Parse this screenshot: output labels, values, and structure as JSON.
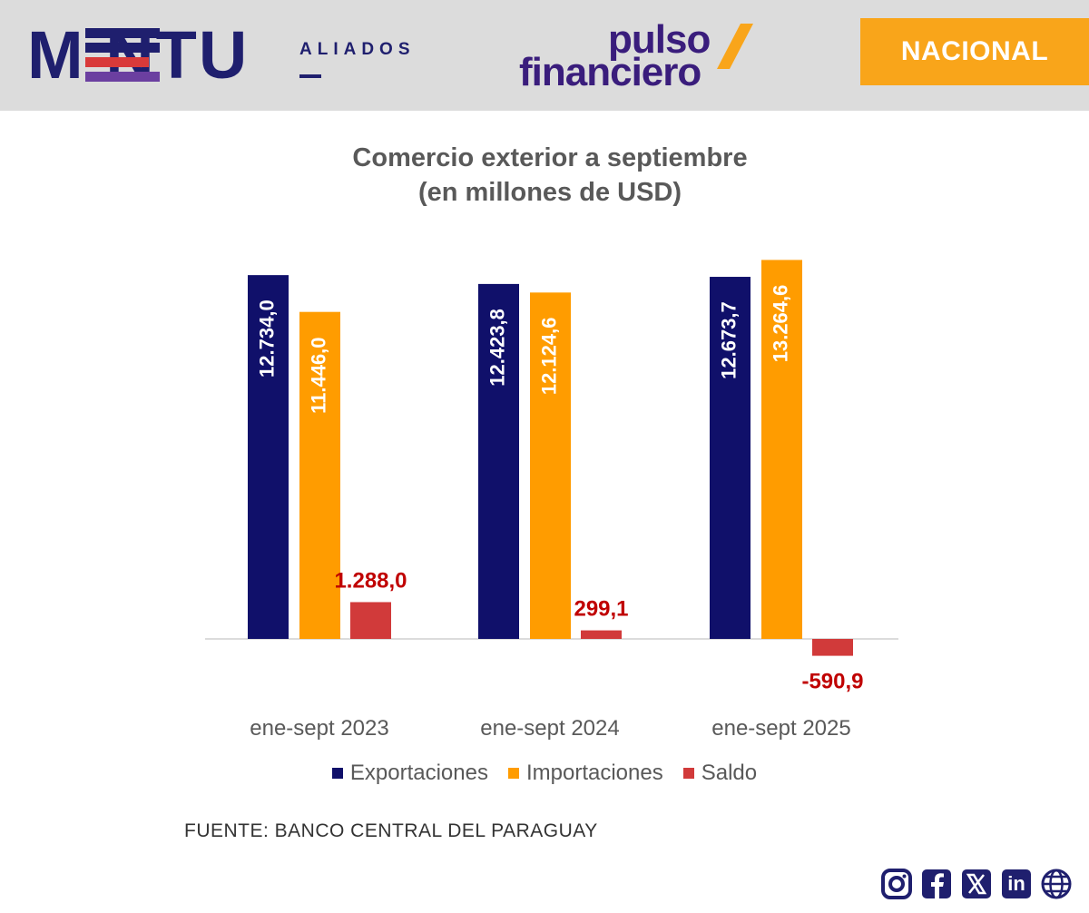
{
  "header": {
    "brand_mentu": "M NTU",
    "brand_aliados": "ALIADOS",
    "brand_pulso_top": "pulso",
    "brand_pulso_bottom": "financiero",
    "section_badge": "NACIONAL",
    "colors": {
      "header_bg": "#dcdcdc",
      "navy": "#1f1f6e",
      "purple": "#3a1d7c",
      "orange": "#f9a51a",
      "red": "#d93a3a",
      "violet": "#6b3fa0"
    }
  },
  "chart_data": {
    "type": "bar",
    "title_line1": "Comercio exterior a septiembre",
    "title_line2": "(en millones de USD)",
    "categories": [
      "ene-sept 2023",
      "ene-sept 2024",
      "ene-sept 2025"
    ],
    "series": [
      {
        "name": "Exportaciones",
        "color": "#10106a",
        "values": [
          12734.0,
          12423.8,
          12673.7
        ],
        "labels": [
          "12.734,0",
          "12.423,8",
          "12.673,7"
        ]
      },
      {
        "name": "Importaciones",
        "color": "#ff9c00",
        "values": [
          11446.0,
          12124.6,
          13264.6
        ],
        "labels": [
          "11.446,0",
          "12.124,6",
          "13.264,6"
        ]
      },
      {
        "name": "Saldo",
        "color": "#d13a3a",
        "values": [
          1288.0,
          299.1,
          -590.9
        ],
        "labels": [
          "1.288,0",
          "299,1",
          "-590,9"
        ]
      }
    ],
    "ylim": [
      -600,
      13300
    ],
    "grid": false,
    "legend_position": "bottom"
  },
  "source_text": "FUENTE: BANCO CENTRAL DEL PARAGUAY",
  "social": {
    "icons": [
      "instagram-icon",
      "facebook-icon",
      "x-icon",
      "linkedin-icon",
      "globe-icon"
    ],
    "linkedin_text": "in",
    "x_text": "𝕏"
  }
}
